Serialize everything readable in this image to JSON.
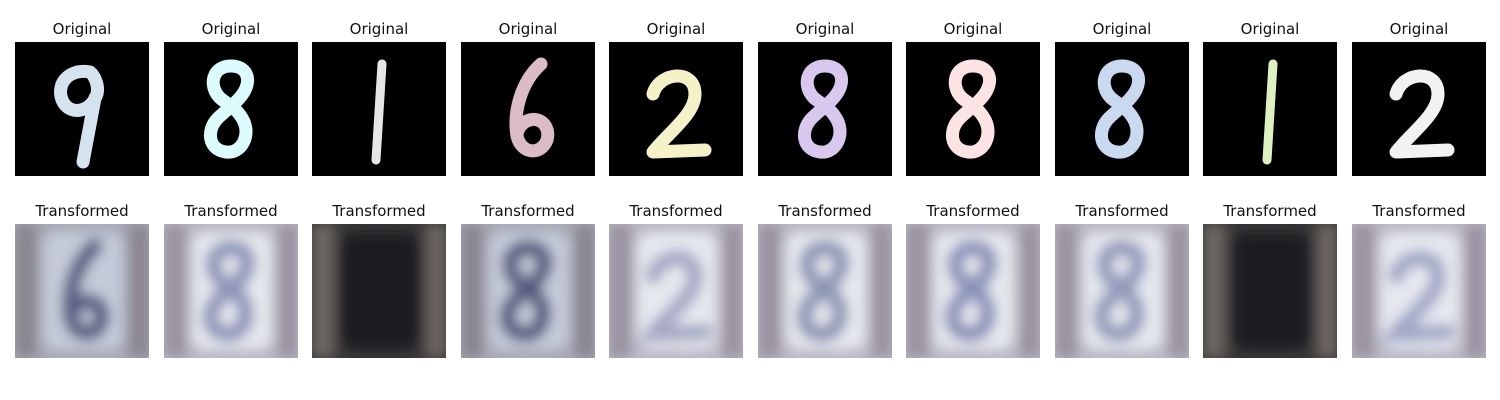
{
  "rows": [
    {
      "label": "Original",
      "panels": [
        {
          "digit": "9",
          "stroke": "#d5e3ee"
        },
        {
          "digit": "8",
          "stroke": "#dcfbfc"
        },
        {
          "digit": "1",
          "stroke": "#e6e6e6"
        },
        {
          "digit": "6",
          "stroke": "#dcbcc4"
        },
        {
          "digit": "2",
          "stroke": "#f5f2c8"
        },
        {
          "digit": "8",
          "stroke": "#d8c8ee"
        },
        {
          "digit": "8",
          "stroke": "#fde4e4"
        },
        {
          "digit": "8",
          "stroke": "#c9d9f0"
        },
        {
          "digit": "1",
          "stroke": "#dff0c0"
        },
        {
          "digit": "2",
          "stroke": "#f2f2f2"
        }
      ]
    },
    {
      "label": "Transformed",
      "panels": [
        {
          "digit": "6",
          "tone": "mid",
          "ink": "#2f3b66"
        },
        {
          "digit": "8",
          "tone": "light",
          "ink": "#6f7aa6"
        },
        {
          "digit": "",
          "tone": "dark",
          "ink": "#2a2a30"
        },
        {
          "digit": "8",
          "tone": "mid",
          "ink": "#2c3560"
        },
        {
          "digit": "2",
          "tone": "light",
          "ink": "#8d93b5"
        },
        {
          "digit": "8",
          "tone": "light",
          "ink": "#6e7aa0"
        },
        {
          "digit": "8",
          "tone": "light",
          "ink": "#6a76a4"
        },
        {
          "digit": "8",
          "tone": "light",
          "ink": "#7680a8"
        },
        {
          "digit": "",
          "tone": "dark",
          "ink": "#2a2a30"
        },
        {
          "digit": "2",
          "tone": "light",
          "ink": "#8a92b8"
        }
      ]
    }
  ]
}
